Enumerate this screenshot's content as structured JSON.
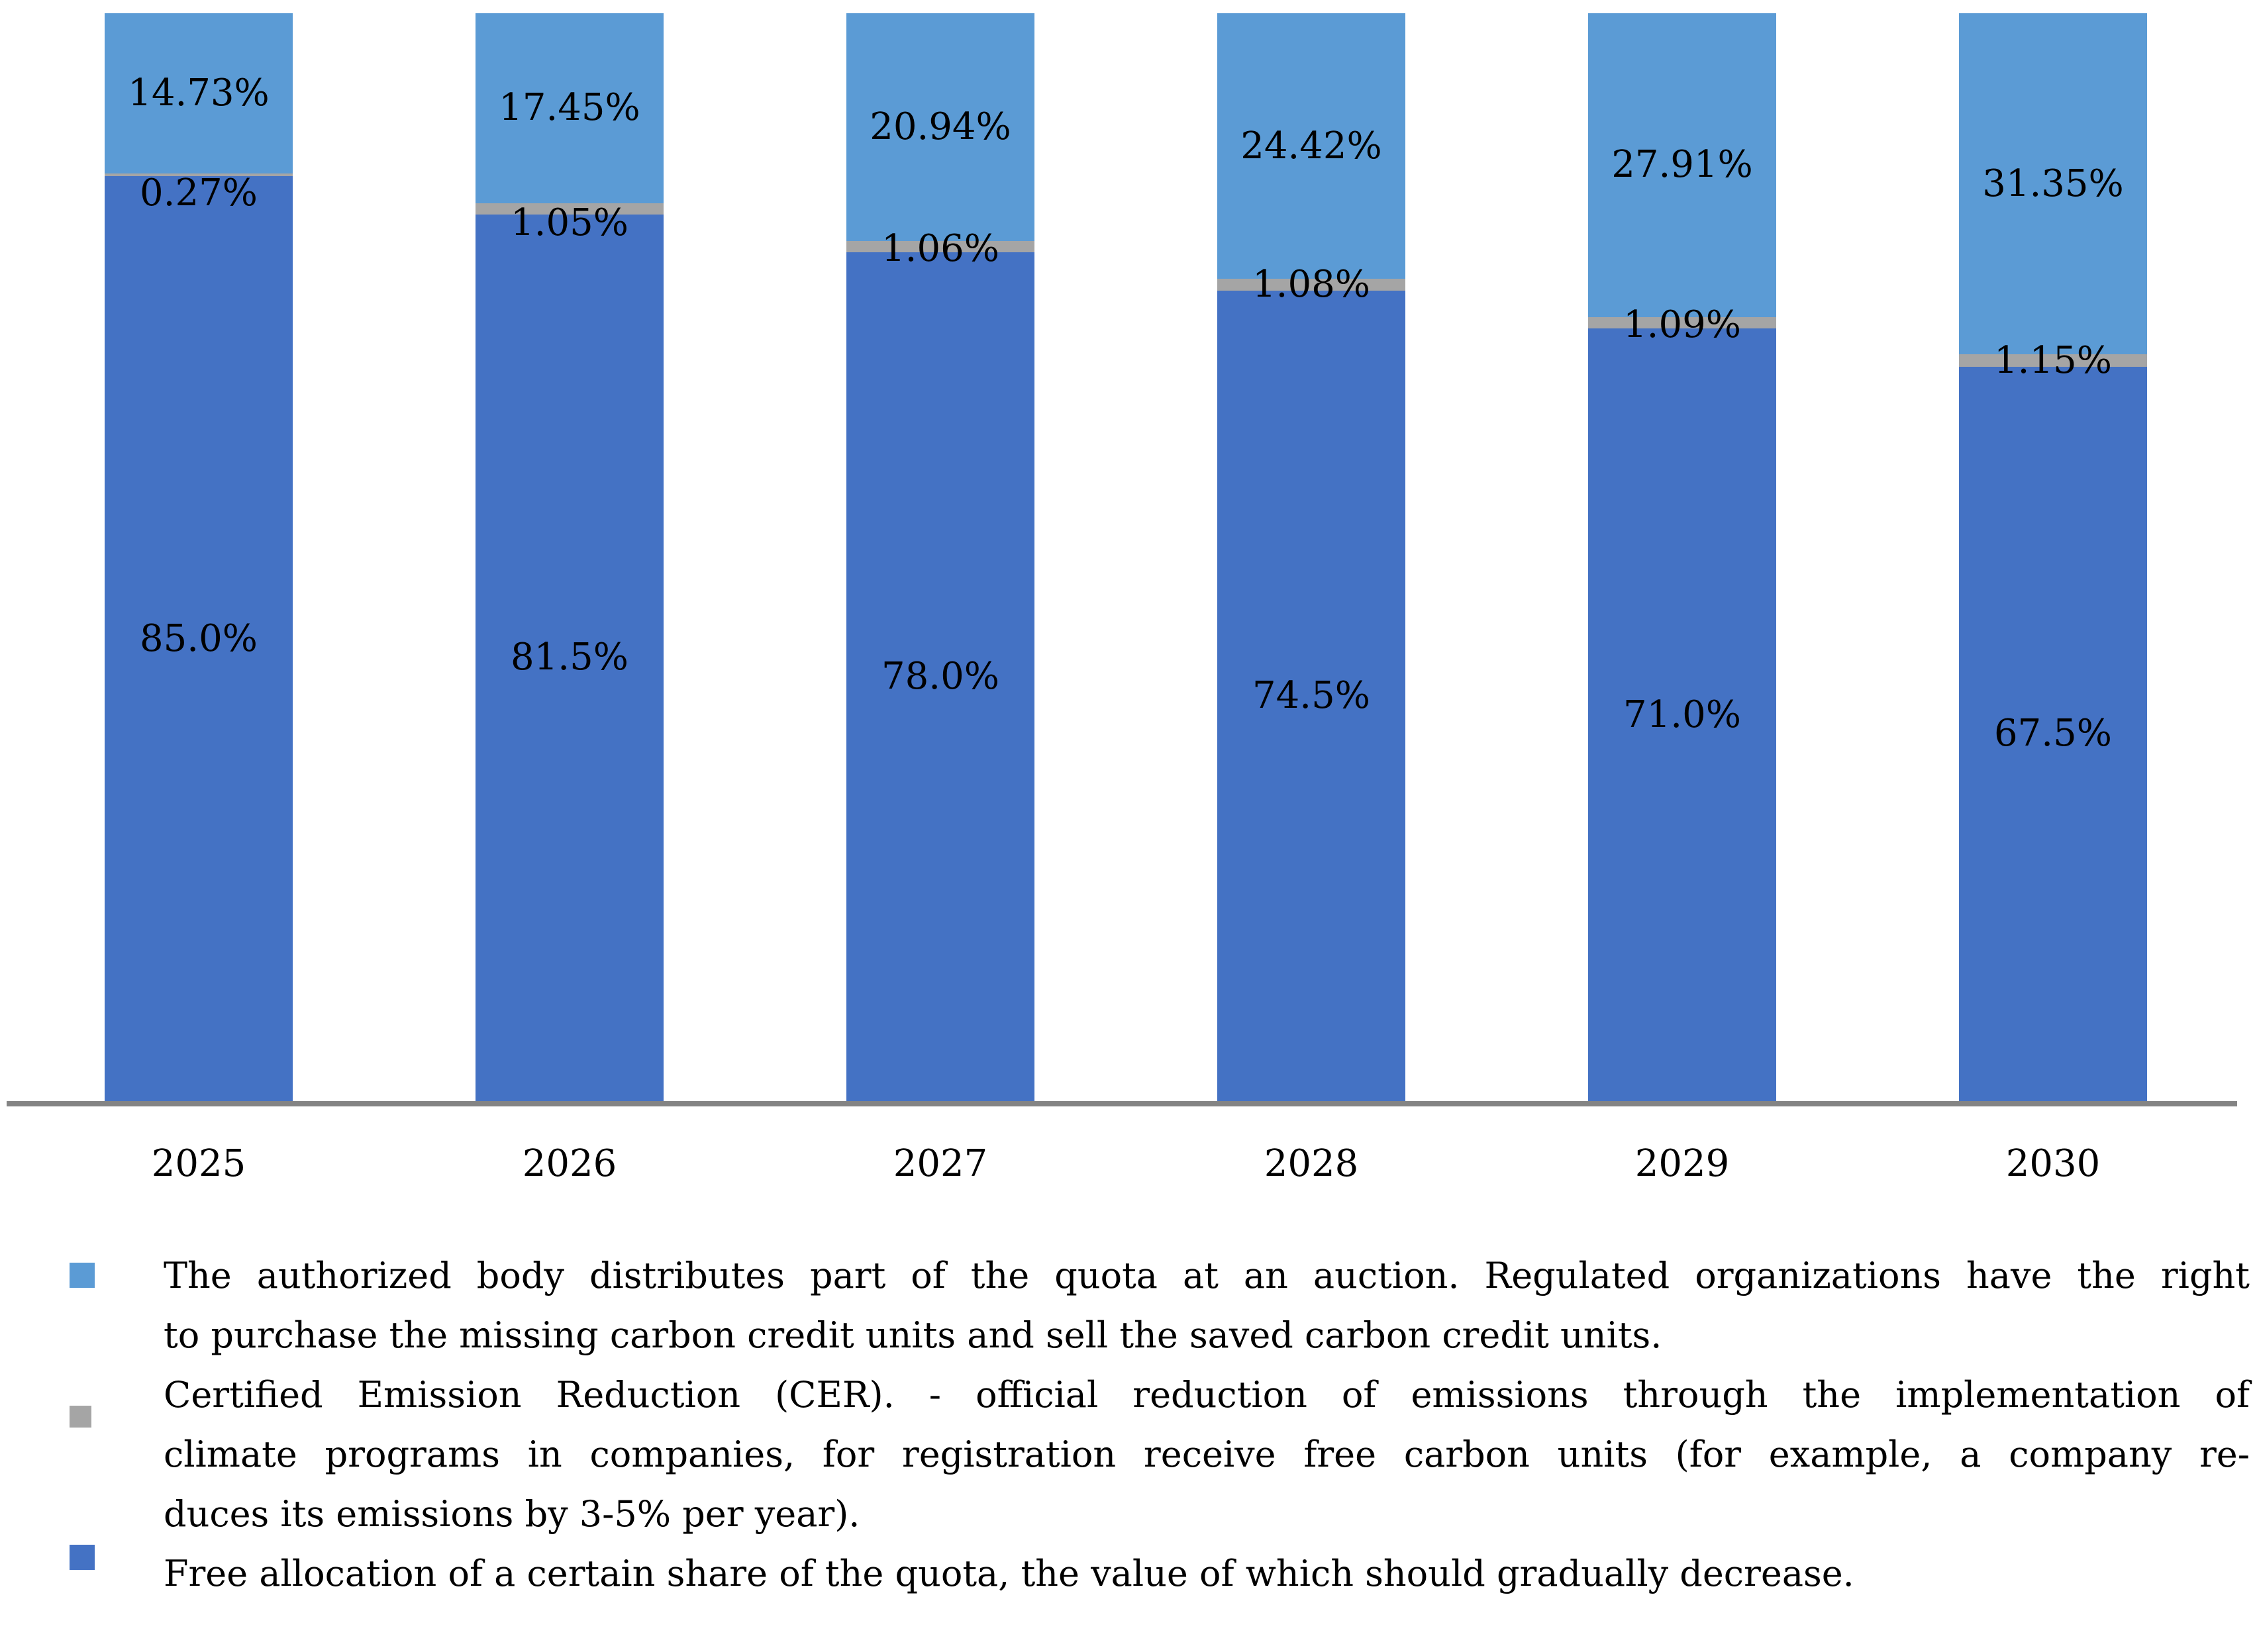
{
  "figure": {
    "background": "#ffffff",
    "axis_line_color": "#848484"
  },
  "chart_data": {
    "type": "bar",
    "stacked": true,
    "orientation": "vertical",
    "title": "",
    "xlabel": "",
    "ylabel": "",
    "ylim": [
      0,
      100
    ],
    "value_format": "percent",
    "data_labels": true,
    "grid": false,
    "legend_position": "bottom",
    "categories": [
      "2025",
      "2026",
      "2027",
      "2028",
      "2029",
      "2030"
    ],
    "series": [
      {
        "name": "Free allocation of a certain share of the quota, the value of which should gradually decrease.",
        "key": "free",
        "color": "#4472C4",
        "values": [
          85.0,
          81.5,
          78.0,
          74.5,
          71.0,
          67.5
        ],
        "labels": [
          "85.0%",
          "81.5%",
          "78.0%",
          "74.5%",
          "71.0%",
          "67.5%"
        ]
      },
      {
        "name": "Certified Emission Reduction (CER)",
        "key": "cer",
        "color": "#A5A5A5",
        "values": [
          0.27,
          1.05,
          1.06,
          1.08,
          1.09,
          1.15
        ],
        "labels": [
          "0.27%",
          "1.05%",
          "1.06%",
          "1.08%",
          "1.09%",
          "1.15%"
        ]
      },
      {
        "name": "The authorized body distributes part of the quota at an auction.",
        "key": "auction",
        "color": "#5B9BD5",
        "values": [
          14.73,
          17.45,
          20.94,
          24.42,
          27.91,
          31.35
        ],
        "labels": [
          "14.73%",
          "17.45%",
          "20.94%",
          "24.42%",
          "27.91%",
          "31.35%"
        ]
      }
    ]
  },
  "legend": {
    "entries": [
      {
        "series_key": "auction",
        "marker_color": "#5B9BD5",
        "lines": [
          {
            "text": "The authorized body distributes part of the quota at an auction. Regulated organizations have the right",
            "justify": true
          },
          {
            "text": "to purchase the missing carbon credit units and sell the saved carbon credit units.",
            "justify": false
          }
        ]
      },
      {
        "series_key": "cer",
        "marker_color": "#A5A5A5",
        "lines": [
          {
            "text": "Certified Emission Reduction (CER). - official reduction of emissions through the implementation of",
            "justify": true
          },
          {
            "text": "climate programs in companies, for registration receive free carbon units (for example, a company re-",
            "justify": true
          },
          {
            "text": "duces its emissions by 3-5% per year).",
            "justify": false
          }
        ]
      },
      {
        "series_key": "free",
        "marker_color": "#4472C4",
        "lines": [
          {
            "text": "Free allocation of a certain share of the quota, the value of which should gradually decrease.",
            "justify": false
          }
        ]
      }
    ]
  }
}
